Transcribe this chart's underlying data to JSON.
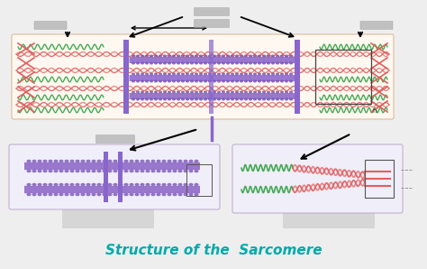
{
  "title": "Structure of the  Sarcomere",
  "title_color": "#00AAAA",
  "title_fontsize": 11,
  "bg_color": "#EEEEEE",
  "main_box_color": "#FFF8F0",
  "z_line_color": "#8866CC",
  "actin_pink": "#E06060",
  "actin_green": "#44AA55",
  "myosin_purple": "#9977CC",
  "myosin_head": "#7755BB",
  "label_bg": "#CCCCCC",
  "arrow_color": "#111111"
}
